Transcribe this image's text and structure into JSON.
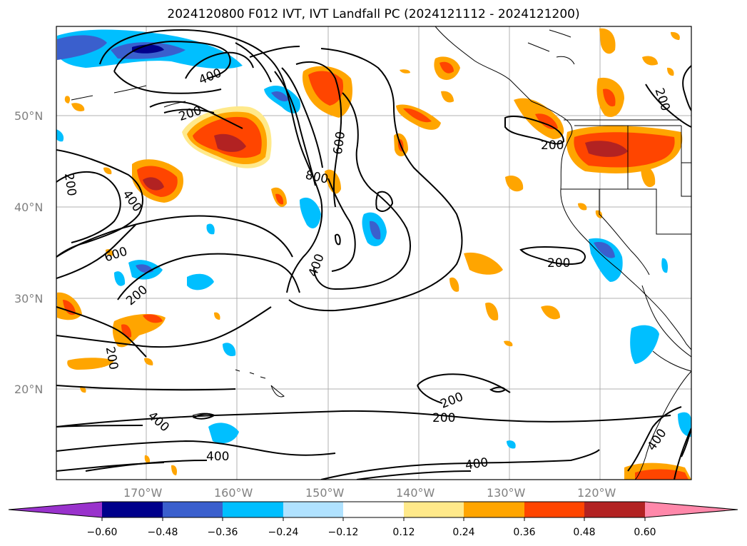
{
  "title": "2024120800 F012 IVT, IVT Landfall PC (2024121112 - 2024121200)",
  "lat_ticks": [
    "50°N",
    "40°N",
    "30°N",
    "20°N"
  ],
  "lon_ticks": [
    "170°W",
    "160°W",
    "150°W",
    "140°W",
    "130°W",
    "120°W"
  ],
  "colorbar": {
    "ticks": [
      "−0.60",
      "−0.48",
      "−0.36",
      "−0.24",
      "−0.12",
      "0.12",
      "0.24",
      "0.36",
      "0.48",
      "0.60"
    ],
    "colors": [
      "#9932cc",
      "#00008b",
      "#3a5fcd",
      "#00bfff",
      "#b0e2ff",
      "#ffffff",
      "#ffe98a",
      "#ffa500",
      "#ff4500",
      "#b22222",
      "#ff88aa"
    ]
  },
  "contour_labels": [
    "400",
    "200",
    "200",
    "400",
    "600",
    "200",
    "200",
    "600",
    "800",
    "400",
    "200",
    "200",
    "200",
    "200",
    "200",
    "400",
    "400",
    "400",
    "400",
    "200"
  ]
}
